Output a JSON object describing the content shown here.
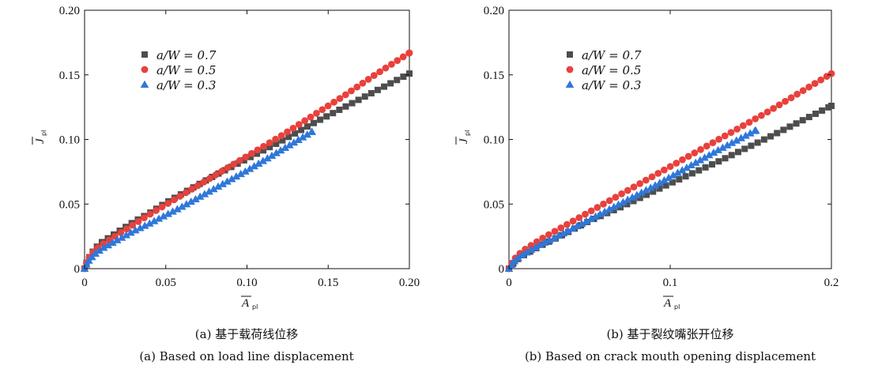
{
  "colors": {
    "s07": "#4d4d4d",
    "s05": "#e8413c",
    "s03": "#2f77d9",
    "axis": "#111111"
  },
  "chart_data": [
    {
      "type": "scatter",
      "panel": "(a)",
      "xlabel": "A",
      "xlabel_sub": "pl",
      "ylabel": "J",
      "ylabel_sub": "pl",
      "xlim": [
        0,
        0.2
      ],
      "ylim": [
        0,
        0.2
      ],
      "xticks": [
        "0",
        "0.05",
        "0.10",
        "0.15",
        "0.20"
      ],
      "yticks": [
        "0",
        "0.05",
        "0.10",
        "0.15",
        "0.20"
      ],
      "xtick_values": [
        0,
        0.05,
        0.1,
        0.15,
        0.2
      ],
      "ytick_values": [
        0,
        0.05,
        0.1,
        0.15,
        0.2
      ],
      "legend_position": "upper-left",
      "caption_cn": "(a) 基于载荷线位移",
      "caption_en": "(a) Based on load line displacement",
      "series": [
        {
          "name": "a/W = 0.7",
          "marker": "square",
          "color": "#4d4d4d",
          "x": [
            0,
            0.001,
            0.003,
            0.006,
            0.01,
            0.02,
            0.03,
            0.04,
            0.05,
            0.06,
            0.08,
            0.1,
            0.12,
            0.14,
            0.16,
            0.18,
            0.2
          ],
          "y": [
            0,
            0.004,
            0.009,
            0.015,
            0.02,
            0.028,
            0.036,
            0.043,
            0.051,
            0.058,
            0.072,
            0.085,
            0.098,
            0.112,
            0.125,
            0.138,
            0.151
          ]
        },
        {
          "name": "a/W = 0.5",
          "marker": "circle",
          "color": "#e8413c",
          "x": [
            0,
            0.001,
            0.003,
            0.006,
            0.01,
            0.02,
            0.04,
            0.06,
            0.08,
            0.1,
            0.12,
            0.14,
            0.16,
            0.18,
            0.2
          ],
          "y": [
            0,
            0.004,
            0.009,
            0.014,
            0.018,
            0.026,
            0.042,
            0.057,
            0.072,
            0.087,
            0.102,
            0.118,
            0.134,
            0.151,
            0.167
          ]
        },
        {
          "name": "a/W = 0.3",
          "marker": "triangle",
          "color": "#2f77d9",
          "x": [
            0,
            0.001,
            0.003,
            0.006,
            0.01,
            0.02,
            0.03,
            0.04,
            0.06,
            0.08,
            0.1,
            0.12,
            0.14
          ],
          "y": [
            0,
            0.003,
            0.007,
            0.011,
            0.015,
            0.022,
            0.029,
            0.035,
            0.048,
            0.062,
            0.076,
            0.091,
            0.106
          ]
        }
      ]
    },
    {
      "type": "scatter",
      "panel": "(b)",
      "xlabel": "A",
      "xlabel_sub": "pl",
      "ylabel": "J",
      "ylabel_sub": "pl",
      "xlim": [
        0,
        0.2
      ],
      "ylim": [
        0,
        0.2
      ],
      "xticks": [
        "0",
        "0.1",
        "0.2"
      ],
      "yticks": [
        "0",
        "0.05",
        "0.10",
        "0.15",
        "0.20"
      ],
      "xtick_values": [
        0,
        0.1,
        0.2
      ],
      "ytick_values": [
        0,
        0.05,
        0.1,
        0.15,
        0.2
      ],
      "legend_position": "upper-left",
      "caption_cn": "(b) 基于裂纹嘴张开位移",
      "caption_en": "(b) Based on crack mouth opening displacement",
      "series": [
        {
          "name": "a/W = 0.7",
          "marker": "square",
          "color": "#4d4d4d",
          "x": [
            0,
            0.002,
            0.005,
            0.01,
            0.02,
            0.03,
            0.05,
            0.07,
            0.1,
            0.13,
            0.16,
            0.2
          ],
          "y": [
            0,
            0.003,
            0.007,
            0.011,
            0.018,
            0.024,
            0.037,
            0.048,
            0.066,
            0.083,
            0.101,
            0.126
          ]
        },
        {
          "name": "a/W = 0.5",
          "marker": "circle",
          "color": "#e8413c",
          "x": [
            0,
            0.002,
            0.005,
            0.01,
            0.02,
            0.04,
            0.06,
            0.08,
            0.1,
            0.12,
            0.14,
            0.16,
            0.18,
            0.2
          ],
          "y": [
            0,
            0.005,
            0.01,
            0.015,
            0.023,
            0.037,
            0.051,
            0.065,
            0.079,
            0.093,
            0.107,
            0.121,
            0.136,
            0.151
          ]
        },
        {
          "name": "a/W = 0.3",
          "marker": "triangle",
          "color": "#2f77d9",
          "x": [
            0,
            0.002,
            0.005,
            0.01,
            0.02,
            0.03,
            0.05,
            0.07,
            0.09,
            0.11,
            0.13,
            0.153
          ],
          "y": [
            0,
            0.004,
            0.008,
            0.012,
            0.019,
            0.025,
            0.038,
            0.051,
            0.064,
            0.078,
            0.092,
            0.107
          ]
        }
      ]
    }
  ]
}
